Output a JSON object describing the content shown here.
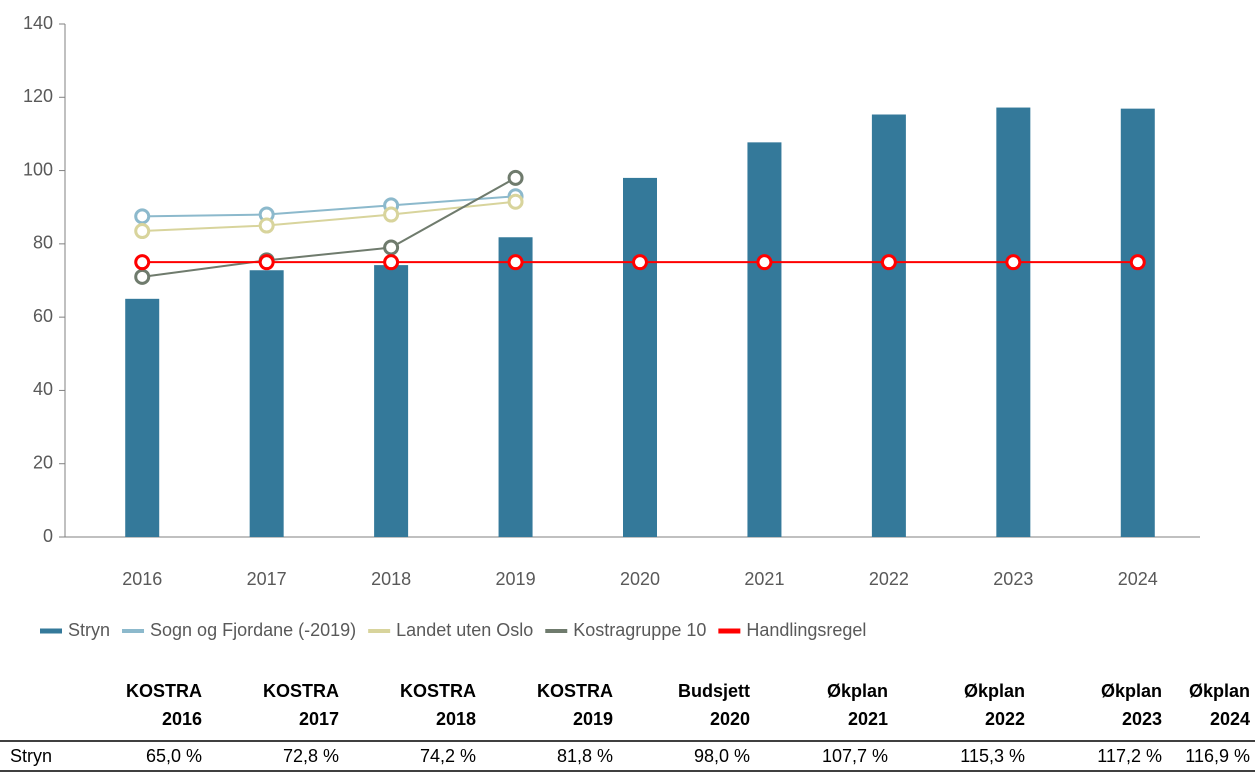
{
  "chart_data": {
    "type": "bar",
    "categories": [
      "2016",
      "2017",
      "2018",
      "2019",
      "2020",
      "2021",
      "2022",
      "2023",
      "2024"
    ],
    "series": [
      {
        "name": "Stryn",
        "type": "bar",
        "color": "#34799a",
        "values": [
          65.0,
          72.8,
          74.2,
          81.8,
          98.0,
          107.7,
          115.3,
          117.2,
          116.9
        ]
      },
      {
        "name": "Sogn og Fjordane (-2019)",
        "type": "line",
        "color": "#8cb9cc",
        "values": [
          87.5,
          88,
          90.5,
          93,
          null,
          null,
          null,
          null,
          null
        ]
      },
      {
        "name": "Landet uten Oslo",
        "type": "line",
        "color": "#d8d49c",
        "values": [
          83.5,
          85,
          88,
          91.5,
          null,
          null,
          null,
          null,
          null
        ]
      },
      {
        "name": "Kostragruppe 10",
        "type": "line",
        "color": "#6f7b6d",
        "values": [
          71,
          75.5,
          79,
          98,
          null,
          null,
          null,
          null,
          null
        ]
      },
      {
        "name": "Handlingsregel",
        "type": "line",
        "color": "#ff0000",
        "values": [
          75,
          75,
          75,
          75,
          75,
          75,
          75,
          75,
          75
        ]
      }
    ],
    "ylim": [
      0,
      140
    ],
    "yticks": [
      0,
      20,
      40,
      60,
      80,
      100,
      120,
      140
    ],
    "legend": "bottom"
  },
  "table": {
    "headers": [
      [
        "KOSTRA",
        "2016"
      ],
      [
        "KOSTRA",
        "2017"
      ],
      [
        "KOSTRA",
        "2018"
      ],
      [
        "KOSTRA",
        "2019"
      ],
      [
        "Budsjett",
        "2020"
      ],
      [
        "Økplan",
        "2021"
      ],
      [
        "Økplan",
        "2022"
      ],
      [
        "Økplan",
        "2023"
      ],
      [
        "Økplan",
        "2024"
      ]
    ],
    "rows": [
      [
        "Stryn",
        "65,0 %",
        "72,8 %",
        "74,2 %",
        "81,8 %",
        "98,0 %",
        "107,7 %",
        "115,3 %",
        "117,2 %",
        "116,9 %"
      ]
    ]
  }
}
